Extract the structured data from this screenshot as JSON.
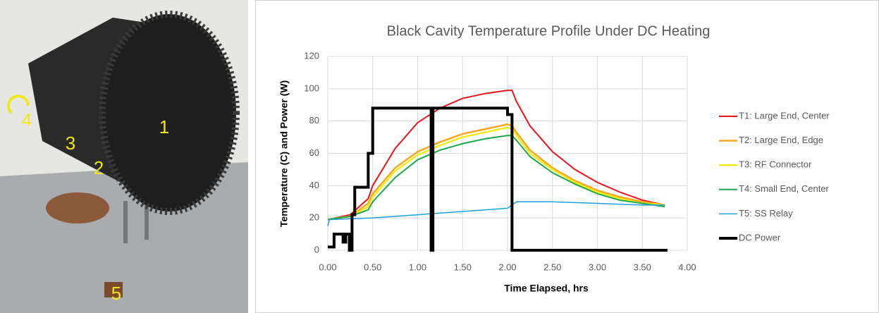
{
  "photo": {
    "labels": [
      "1",
      "2",
      "3",
      "4",
      "5"
    ]
  },
  "chart_data": {
    "type": "line",
    "title": "Black Cavity Temperature Profile Under DC Heating",
    "xlabel": "Time Elapsed, hrs",
    "ylabel": "Temperature (C) and Power (W)",
    "xlim": [
      0,
      4
    ],
    "xticks": [
      {
        "value": 0,
        "label": "0.00"
      },
      {
        "value": 0.5,
        "label": "0.50"
      },
      {
        "value": 1,
        "label": "1.00"
      },
      {
        "value": 1.5,
        "label": "1.50"
      },
      {
        "value": 2,
        "label": "2.00"
      },
      {
        "value": 2.5,
        "label": "2.50"
      },
      {
        "value": 3,
        "label": "3.00"
      },
      {
        "value": 3.5,
        "label": "3.50"
      },
      {
        "value": 4,
        "label": "4.00"
      }
    ],
    "ylim": [
      0,
      120
    ],
    "yticks": [
      0,
      20,
      40,
      60,
      80,
      100,
      120
    ],
    "grid": true,
    "legend": "right",
    "series": [
      {
        "name": "T1: Large End, Center",
        "color": "#e8141b",
        "width": 2,
        "x": [
          0,
          0.25,
          0.45,
          0.5,
          0.75,
          1,
          1.25,
          1.5,
          1.75,
          2,
          2.05,
          2.1,
          2.25,
          2.5,
          2.75,
          3,
          3.25,
          3.5,
          3.75
        ],
        "values": [
          19,
          22,
          32,
          40,
          63,
          79,
          88,
          94,
          97,
          99,
          99,
          92,
          77,
          61,
          50,
          42,
          36,
          31,
          28
        ]
      },
      {
        "name": "T2: Large End, Edge",
        "color": "#f5a623",
        "width": 2.5,
        "x": [
          0,
          0.25,
          0.45,
          0.5,
          0.75,
          1,
          1.25,
          1.5,
          1.75,
          2,
          2.05,
          2.1,
          2.25,
          2.5,
          2.75,
          3,
          3.25,
          3.5,
          3.75
        ],
        "values": [
          19,
          21,
          29,
          35,
          51,
          61,
          67,
          72,
          75,
          78,
          77,
          73,
          62,
          51,
          43,
          37,
          33,
          30,
          28
        ]
      },
      {
        "name": "T3: RF Connector",
        "color": "#f3ea1a",
        "width": 2.5,
        "x": [
          0,
          0.25,
          0.45,
          0.5,
          0.75,
          1,
          1.25,
          1.5,
          1.75,
          2,
          2.05,
          2.1,
          2.25,
          2.5,
          2.75,
          3,
          3.25,
          3.5,
          3.75
        ],
        "values": [
          19,
          21,
          27,
          33,
          49,
          59,
          65,
          70,
          73,
          76,
          75,
          71,
          60,
          50,
          42,
          36,
          32,
          29,
          28
        ]
      },
      {
        "name": "T4: Small End, Center",
        "color": "#1fa84a",
        "width": 2,
        "x": [
          0,
          0.25,
          0.45,
          0.5,
          0.75,
          1,
          1.25,
          1.5,
          1.75,
          2,
          2.05,
          2.1,
          2.25,
          2.5,
          2.75,
          3,
          3.25,
          3.5,
          3.75
        ],
        "values": [
          19,
          21,
          25,
          30,
          45,
          56,
          62,
          66,
          69,
          71,
          71,
          68,
          58,
          48,
          41,
          35,
          31,
          29,
          27
        ]
      },
      {
        "name": "T5: SS Relay",
        "color": "#1ea0dc",
        "width": 1.5,
        "x": [
          0,
          0.02,
          0.5,
          1,
          1.25,
          1.5,
          2,
          2.1,
          2.25,
          2.5,
          3,
          3.5,
          3.75
        ],
        "values": [
          15,
          19,
          20,
          22,
          23,
          24,
          26,
          30,
          30,
          30,
          29,
          28,
          28
        ]
      },
      {
        "name": "DC Power",
        "color": "#000000",
        "width": 4,
        "x": [
          0,
          0.07,
          0.07,
          0.17,
          0.17,
          0.2,
          0.2,
          0.24,
          0.24,
          0.27,
          0.27,
          0.3,
          0.3,
          0.45,
          0.45,
          0.5,
          0.5,
          1.15,
          1.15,
          1.17,
          1.17,
          2,
          2,
          2.05,
          2.05,
          3.78
        ],
        "values": [
          2,
          2,
          10,
          10,
          5,
          5,
          10,
          10,
          0,
          0,
          22,
          22,
          39,
          39,
          60,
          60,
          88,
          88,
          0,
          0,
          88,
          88,
          84,
          84,
          0,
          0
        ]
      }
    ]
  }
}
